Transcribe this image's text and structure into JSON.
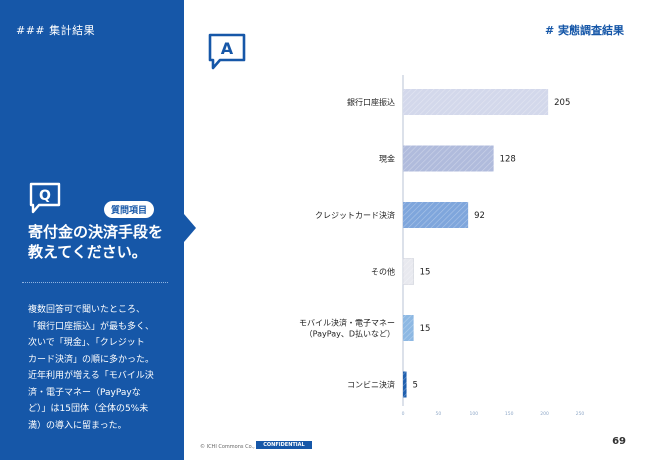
{
  "left": {
    "section_label": "### 集計結果",
    "question_badge": "質問項目",
    "question_line1": "寄付金の決済手段を",
    "question_line2": "教えてください。",
    "summary": [
      "複数回答可で聞いたところ、",
      "「銀行口座振込」が最も多く、",
      "次いで「現金」、「クレジット",
      "カード決済」の順に多かった。",
      "近年利用が増える「モバイル決",
      "済・電子マネー（PayPayな",
      "ど）」は15団体（全体の5%未",
      "満）の導入に留まった。"
    ]
  },
  "header": {
    "tag": "# 実態調査結果"
  },
  "icons": {
    "question": "speech-bubble-Q-icon",
    "answer": "speech-bubble-A-icon"
  },
  "colors": {
    "brand": "#1657a8",
    "bar_light_gray": "#e8eaf2"
  },
  "chart_data": {
    "type": "bar",
    "orientation": "horizontal",
    "categories": [
      "銀行口座振込",
      "現金",
      "クレジットカード決済",
      "その他",
      "モバイル決済・電子マネー\n（PayPay、D払いなど）",
      "コンビニ決済"
    ],
    "values": [
      205,
      128,
      92,
      15,
      15,
      5
    ],
    "bar_colors": [
      "#d3d8eb",
      "#b0bbdc",
      "#7fa6dc",
      "#e8e9ef",
      "#8db8e3",
      "#1f5fae"
    ],
    "xlim": [
      0,
      250
    ],
    "xticks": [
      0,
      50,
      100,
      150,
      200,
      250
    ],
    "grid": false
  },
  "footer": {
    "copyright": "© ICHI Commons Co., Ltd.",
    "confidential": "CONFIDENTIAL",
    "page_number": "69"
  }
}
